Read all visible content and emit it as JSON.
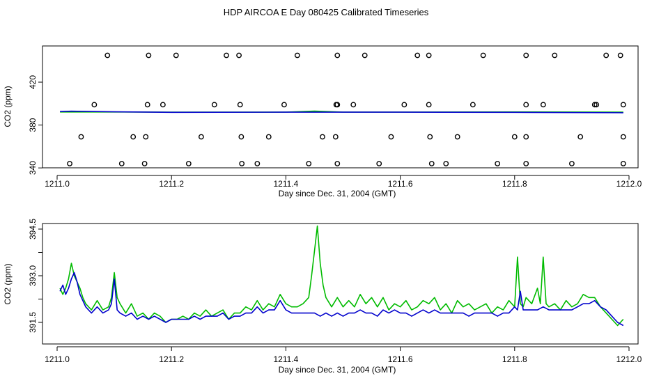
{
  "figure": {
    "title": "HDP AIRCOA E  Day 080425  Calibrated Timeseries"
  },
  "colors": {
    "blue": "#0000cc",
    "green": "#00bb00",
    "frame": "#000000",
    "markers": "#000000"
  },
  "chart_data": [
    {
      "type": "scatter",
      "xlabel": "Day since Dec. 31, 2004 (GMT)",
      "ylabel": "CO2 (ppm)",
      "xlim": [
        1211.0,
        1212.0
      ],
      "ylim": [
        340,
        451
      ],
      "xticks": [
        "1211.0",
        "1211.2",
        "1211.4",
        "1211.6",
        "1211.8",
        "1212.0"
      ],
      "yticks": [
        "340",
        "380",
        "420"
      ],
      "xtick_values": [
        1211.0,
        1211.2,
        1211.4,
        1211.6,
        1211.8,
        1212.0
      ],
      "ytick_values": [
        340,
        380,
        420
      ],
      "markers": {
        "x": [
          1211.088,
          1211.16,
          1211.208,
          1211.296,
          1211.318,
          1211.42,
          1211.49,
          1211.538,
          1211.63,
          1211.65,
          1211.745,
          1211.82,
          1211.87,
          1211.96,
          1211.985,
          1211.065,
          1211.158,
          1211.185,
          1211.275,
          1211.32,
          1211.397,
          1211.488,
          1211.49,
          1211.518,
          1211.607,
          1211.65,
          1211.727,
          1211.82,
          1211.85,
          1211.94,
          1211.943,
          1211.99,
          1211.042,
          1211.133,
          1211.155,
          1211.252,
          1211.322,
          1211.37,
          1211.464,
          1211.487,
          1211.584,
          1211.652,
          1211.7,
          1211.8,
          1211.82,
          1211.915,
          1211.99,
          1211.022,
          1211.113,
          1211.153,
          1211.23,
          1211.323,
          1211.35,
          1211.44,
          1211.49,
          1211.563,
          1211.655,
          1211.68,
          1211.77,
          1211.82,
          1211.9,
          1211.99
        ],
        "y": [
          445,
          445,
          445,
          445,
          445,
          445,
          445,
          445,
          445,
          445,
          445,
          445,
          445,
          445,
          445,
          399,
          399,
          399,
          399,
          399,
          399,
          399,
          399,
          399,
          399,
          399,
          399,
          399,
          399,
          399,
          399,
          399,
          369,
          369,
          369,
          369,
          369,
          369,
          369,
          369,
          369,
          369,
          369,
          369,
          369,
          369,
          369,
          344,
          344,
          344,
          344,
          344,
          344,
          344,
          344,
          344,
          344,
          344,
          344,
          344,
          344,
          344
        ]
      },
      "series": [
        {
          "color": "green",
          "x": [
            1211.005,
            1211.195,
            1211.2,
            1211.4,
            1211.45,
            1211.5,
            1211.6,
            1211.8,
            1211.99
          ],
          "y": [
            392.2,
            392.1,
            392.0,
            392.1,
            393.0,
            392.1,
            392.1,
            392.2,
            392.0
          ]
        },
        {
          "color": "blue",
          "x": [
            1211.005,
            1211.025,
            1211.1,
            1211.2,
            1211.4,
            1211.6,
            1211.8,
            1211.99
          ],
          "y": [
            392.6,
            392.9,
            392.3,
            391.9,
            392.0,
            392.0,
            391.9,
            391.5
          ]
        }
      ]
    },
    {
      "type": "line",
      "xlabel": "Day since Dec. 31, 2004 (GMT)",
      "ylabel": "CO2 (ppm)",
      "xlim": [
        1211.0,
        1212.0
      ],
      "ylim": [
        391.2,
        394.7
      ],
      "xticks": [
        "1211.0",
        "1211.2",
        "1211.4",
        "1211.6",
        "1211.8",
        "1212.0"
      ],
      "yticks": [
        "391.5",
        "393.0",
        "394.5"
      ],
      "xtick_values": [
        1211.0,
        1211.2,
        1211.4,
        1211.6,
        1211.8,
        1212.0
      ],
      "ytick_values": [
        391.5,
        392.25,
        393.0,
        393.75,
        394.5
      ],
      "series": [
        {
          "color": "green",
          "x": [
            1211.005,
            1211.01,
            1211.015,
            1211.02,
            1211.025,
            1211.03,
            1211.035,
            1211.04,
            1211.045,
            1211.05,
            1211.06,
            1211.07,
            1211.08,
            1211.09,
            1211.095,
            1211.1,
            1211.105,
            1211.11,
            1211.12,
            1211.13,
            1211.14,
            1211.15,
            1211.16,
            1211.17,
            1211.18,
            1211.19,
            1211.2,
            1211.21,
            1211.22,
            1211.23,
            1211.24,
            1211.25,
            1211.26,
            1211.27,
            1211.28,
            1211.29,
            1211.3,
            1211.31,
            1211.32,
            1211.33,
            1211.34,
            1211.35,
            1211.36,
            1211.37,
            1211.38,
            1211.39,
            1211.4,
            1211.41,
            1211.42,
            1211.43,
            1211.44,
            1211.445,
            1211.45,
            1211.455,
            1211.46,
            1211.465,
            1211.47,
            1211.48,
            1211.49,
            1211.5,
            1211.51,
            1211.52,
            1211.53,
            1211.54,
            1211.55,
            1211.56,
            1211.57,
            1211.58,
            1211.59,
            1211.6,
            1211.61,
            1211.62,
            1211.63,
            1211.64,
            1211.65,
            1211.66,
            1211.67,
            1211.68,
            1211.69,
            1211.7,
            1211.71,
            1211.72,
            1211.73,
            1211.74,
            1211.75,
            1211.76,
            1211.77,
            1211.78,
            1211.79,
            1211.8,
            1211.805,
            1211.81,
            1211.815,
            1211.82,
            1211.83,
            1211.84,
            1211.845,
            1211.85,
            1211.855,
            1211.86,
            1211.87,
            1211.88,
            1211.89,
            1211.9,
            1211.91,
            1211.92,
            1211.93,
            1211.94,
            1211.95,
            1211.96,
            1211.97,
            1211.98,
            1211.99
          ],
          "y": [
            392.6,
            392.4,
            392.6,
            392.9,
            393.4,
            393.0,
            392.8,
            392.6,
            392.3,
            392.1,
            391.9,
            392.2,
            391.9,
            392.0,
            392.3,
            393.1,
            392.3,
            392.1,
            391.8,
            392.1,
            391.7,
            391.8,
            391.6,
            391.8,
            391.7,
            391.5,
            391.6,
            391.6,
            391.7,
            391.6,
            391.8,
            391.7,
            391.9,
            391.7,
            391.8,
            391.9,
            391.6,
            391.8,
            391.8,
            392.0,
            391.9,
            392.2,
            391.9,
            392.1,
            392.0,
            392.4,
            392.1,
            392.0,
            392.0,
            392.1,
            392.3,
            393.0,
            393.8,
            394.6,
            393.4,
            392.7,
            392.3,
            392.0,
            392.3,
            392.0,
            392.2,
            392.0,
            392.4,
            392.1,
            392.3,
            392.0,
            392.3,
            391.9,
            392.1,
            392.0,
            392.2,
            391.9,
            392.0,
            392.2,
            392.1,
            392.3,
            391.9,
            392.1,
            391.8,
            392.2,
            392.0,
            392.1,
            391.9,
            392.0,
            392.1,
            391.8,
            392.0,
            391.9,
            392.2,
            392.0,
            393.6,
            392.1,
            392.0,
            392.3,
            392.1,
            392.6,
            392.1,
            393.6,
            392.1,
            392.0,
            392.1,
            391.9,
            392.2,
            392.0,
            392.1,
            392.4,
            392.3,
            392.3,
            392.0,
            391.8,
            391.6,
            391.4,
            391.6
          ]
        },
        {
          "color": "blue",
          "x": [
            1211.005,
            1211.01,
            1211.015,
            1211.02,
            1211.025,
            1211.03,
            1211.035,
            1211.04,
            1211.045,
            1211.05,
            1211.06,
            1211.07,
            1211.08,
            1211.09,
            1211.095,
            1211.1,
            1211.105,
            1211.11,
            1211.12,
            1211.13,
            1211.14,
            1211.15,
            1211.16,
            1211.17,
            1211.18,
            1211.19,
            1211.2,
            1211.21,
            1211.22,
            1211.23,
            1211.24,
            1211.25,
            1211.26,
            1211.27,
            1211.28,
            1211.29,
            1211.3,
            1211.31,
            1211.32,
            1211.33,
            1211.34,
            1211.35,
            1211.36,
            1211.37,
            1211.38,
            1211.39,
            1211.4,
            1211.41,
            1211.42,
            1211.43,
            1211.44,
            1211.45,
            1211.46,
            1211.47,
            1211.48,
            1211.49,
            1211.5,
            1211.51,
            1211.52,
            1211.53,
            1211.54,
            1211.55,
            1211.56,
            1211.57,
            1211.58,
            1211.59,
            1211.6,
            1211.61,
            1211.62,
            1211.63,
            1211.64,
            1211.65,
            1211.66,
            1211.67,
            1211.68,
            1211.69,
            1211.7,
            1211.71,
            1211.72,
            1211.73,
            1211.74,
            1211.75,
            1211.76,
            1211.77,
            1211.78,
            1211.79,
            1211.8,
            1211.805,
            1211.81,
            1211.815,
            1211.82,
            1211.83,
            1211.84,
            1211.85,
            1211.86,
            1211.87,
            1211.88,
            1211.89,
            1211.9,
            1211.91,
            1211.92,
            1211.93,
            1211.94,
            1211.95,
            1211.96,
            1211.97,
            1211.98,
            1211.99
          ],
          "y": [
            392.5,
            392.7,
            392.4,
            392.6,
            392.9,
            393.1,
            392.8,
            392.4,
            392.2,
            392.0,
            391.8,
            392.0,
            391.8,
            391.9,
            392.1,
            392.9,
            391.9,
            391.8,
            391.7,
            391.8,
            391.6,
            391.7,
            391.6,
            391.7,
            391.6,
            391.5,
            391.6,
            391.6,
            391.6,
            391.6,
            391.7,
            391.6,
            391.7,
            391.7,
            391.7,
            391.8,
            391.6,
            391.7,
            391.7,
            391.8,
            391.8,
            392.0,
            391.8,
            391.9,
            391.9,
            392.2,
            391.9,
            391.8,
            391.8,
            391.8,
            391.8,
            391.8,
            391.7,
            391.8,
            391.7,
            391.8,
            391.7,
            391.8,
            391.8,
            391.9,
            391.8,
            391.8,
            391.7,
            391.9,
            391.8,
            391.9,
            391.8,
            391.8,
            391.7,
            391.8,
            391.9,
            391.8,
            391.9,
            391.8,
            391.8,
            391.8,
            391.8,
            391.8,
            391.7,
            391.8,
            391.8,
            391.8,
            391.8,
            391.7,
            391.8,
            391.8,
            392.0,
            391.9,
            392.5,
            391.9,
            391.9,
            391.9,
            391.9,
            392.0,
            391.9,
            391.9,
            391.9,
            391.9,
            391.9,
            392.0,
            392.1,
            392.1,
            392.2,
            392.0,
            391.9,
            391.7,
            391.5,
            391.4
          ]
        }
      ]
    }
  ]
}
